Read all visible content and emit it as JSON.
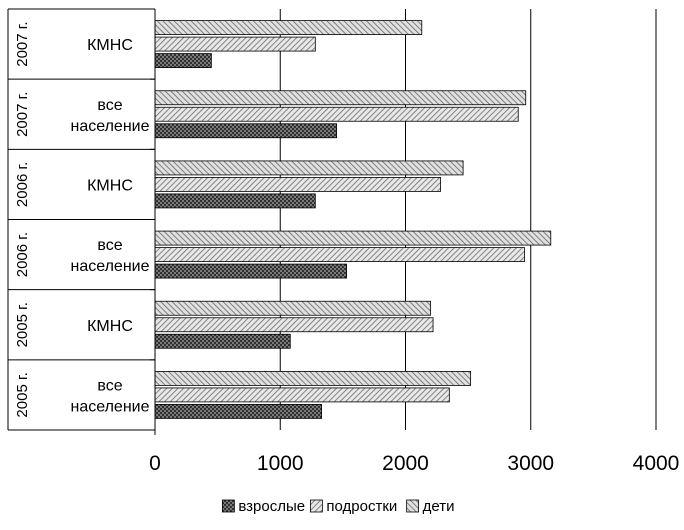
{
  "chart_data": {
    "type": "bar",
    "orientation": "horizontal",
    "groups": [
      {
        "year": "2005 г.",
        "label": [
          "все",
          "население"
        ]
      },
      {
        "year": "2005 г.",
        "label": [
          "КМНС"
        ]
      },
      {
        "year": "2006 г.",
        "label": [
          "все",
          "население"
        ]
      },
      {
        "year": "2006 г.",
        "label": [
          "КМНС"
        ]
      },
      {
        "year": "2007 г.",
        "label": [
          "все",
          "население"
        ]
      },
      {
        "year": "2007 г.",
        "label": [
          "КМНС"
        ]
      }
    ],
    "series": [
      {
        "name": "взрослые",
        "values": [
          1330,
          1080,
          1530,
          1280,
          1450,
          450
        ]
      },
      {
        "name": "подростки",
        "values": [
          2350,
          2220,
          2950,
          2280,
          2900,
          1280
        ]
      },
      {
        "name": "дети",
        "values": [
          2520,
          2200,
          3160,
          2460,
          2960,
          2130
        ]
      }
    ],
    "xlim": [
      0,
      4000
    ],
    "x_ticks": [
      0,
      1000,
      2000,
      3000,
      4000
    ],
    "grid": true,
    "legend_position": "bottom",
    "colors": {
      "bar_fill": "#d0d0d0",
      "bar_fill_dark": "#555555",
      "bar_stroke": "#000000",
      "grid": "#000000"
    }
  }
}
